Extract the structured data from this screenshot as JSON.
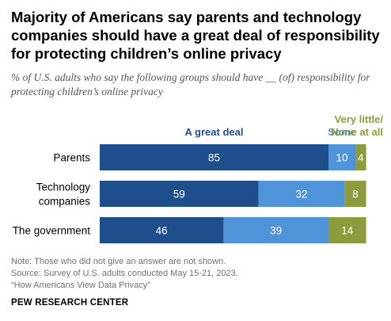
{
  "title": "Majority of Americans say parents and technology companies should have a great deal of responsibility for protecting children’s online privacy",
  "subtitle": "% of U.S. adults who say the following groups should have __ (of) responsibility for protecting children’s online privacy",
  "notes": {
    "note": "Note: Those who did not give an answer are not shown.",
    "source": "Source: Survey of U.S. adults conducted May 15-21, 2023.",
    "report": "“How Americans View Data Privacy”"
  },
  "brand": "PEW RESEARCH CENTER",
  "colors": {
    "great_deal": "#1f4e8c",
    "some": "#4f93d8",
    "little_none": "#8c9b3c",
    "great_deal_label": "#1f4e8c",
    "some_label": "#4f93d8",
    "little_none_label": "#8c9b3c"
  },
  "chart_data": {
    "type": "bar",
    "orientation": "horizontal",
    "stacked": true,
    "categories": [
      [
        "Parents"
      ],
      [
        "Technology",
        "companies"
      ],
      [
        "The government"
      ]
    ],
    "series": [
      {
        "name": "A great deal",
        "values": [
          85,
          59,
          46
        ]
      },
      {
        "name": "Some",
        "values": [
          10,
          32,
          39
        ]
      },
      {
        "name": "Very little/ None at all",
        "name_lines": [
          "Very little/",
          "None at all"
        ],
        "values": [
          4,
          8,
          14
        ]
      }
    ],
    "xlim": [
      0,
      100
    ]
  }
}
